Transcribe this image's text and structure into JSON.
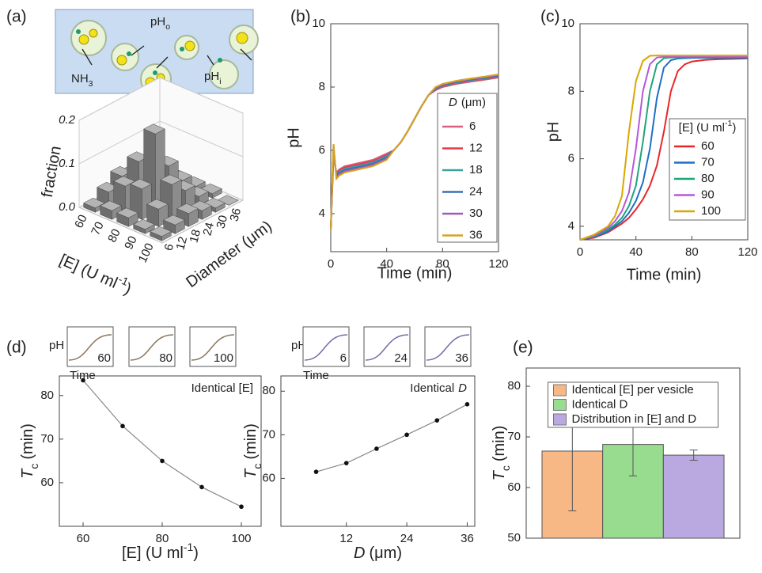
{
  "schematic": {
    "outside": {
      "text": "pH",
      "sub": "o"
    },
    "ammonia": {
      "text": "NH",
      "sub": "3"
    },
    "inside": {
      "text": "pH",
      "sub": "i"
    }
  },
  "chart_data": [
    {
      "type": "bar3d",
      "panel": "(a)",
      "y_label": "fraction",
      "categories": [
        "6",
        "12",
        "18",
        "24",
        "30",
        "36"
      ],
      "x_label": "Diameter (μm)",
      "z_categories": [
        60,
        70,
        80,
        90,
        100
      ],
      "z_label": {
        "text": "[E] (U ml",
        "sup": "-1",
        "end": ")"
      },
      "values": [
        [
          0.01,
          0.03,
          0.05,
          0.04,
          0.02,
          0.01
        ],
        [
          0.02,
          0.06,
          0.1,
          0.07,
          0.03,
          0.01
        ],
        [
          0.02,
          0.07,
          0.18,
          0.09,
          0.04,
          0.01
        ],
        [
          0.01,
          0.04,
          0.08,
          0.05,
          0.02,
          0.01
        ],
        [
          0.01,
          0.02,
          0.03,
          0.02,
          0.01,
          0.0
        ]
      ],
      "ylim": [
        0,
        0.2
      ],
      "yticks": [
        {
          "value": 0,
          "label": "0.0"
        },
        0.1,
        0.2
      ],
      "color": "#8c8c8c"
    },
    {
      "type": "line",
      "panel": "(b)",
      "x_label": "Time (min)",
      "y_label": "pH",
      "x": [
        0,
        2,
        4,
        6,
        10,
        15,
        20,
        25,
        30,
        35,
        40,
        45,
        50,
        55,
        60,
        65,
        70,
        75,
        80,
        90,
        100,
        110,
        120
      ],
      "series": [
        {
          "name": "6",
          "color": "#d9607a",
          "values": [
            3.5,
            5.8,
            5.3,
            5.4,
            5.5,
            5.55,
            5.6,
            5.65,
            5.7,
            5.8,
            5.9,
            6.0,
            6.25,
            6.6,
            7.0,
            7.4,
            7.75,
            7.9,
            8.0,
            8.1,
            8.17,
            8.23,
            8.3
          ]
        },
        {
          "name": "12",
          "color": "#e8394a",
          "values": [
            3.5,
            5.9,
            5.26,
            5.36,
            5.46,
            5.51,
            5.56,
            5.61,
            5.66,
            5.76,
            5.86,
            6.0,
            6.25,
            6.6,
            7.0,
            7.4,
            7.75,
            7.92,
            8.02,
            8.12,
            8.19,
            8.25,
            8.32
          ]
        },
        {
          "name": "18",
          "color": "#3aa0a0",
          "values": [
            3.5,
            6.0,
            5.22,
            5.32,
            5.42,
            5.47,
            5.52,
            5.57,
            5.62,
            5.72,
            5.82,
            6.0,
            6.25,
            6.6,
            7.0,
            7.4,
            7.75,
            7.94,
            8.04,
            8.14,
            8.21,
            8.27,
            8.34
          ]
        },
        {
          "name": "24",
          "color": "#3c6fb8",
          "values": [
            3.5,
            6.1,
            5.18,
            5.28,
            5.38,
            5.43,
            5.48,
            5.53,
            5.58,
            5.68,
            5.78,
            6.0,
            6.25,
            6.6,
            7.0,
            7.4,
            7.75,
            7.96,
            8.06,
            8.16,
            8.23,
            8.29,
            8.36
          ]
        },
        {
          "name": "30",
          "color": "#a05ab8",
          "values": [
            3.5,
            6.15,
            5.14,
            5.24,
            5.34,
            5.39,
            5.44,
            5.49,
            5.54,
            5.64,
            5.74,
            6.0,
            6.25,
            6.6,
            7.0,
            7.4,
            7.75,
            7.98,
            8.08,
            8.18,
            8.25,
            8.31,
            8.38
          ]
        },
        {
          "name": "36",
          "color": "#d6a41e",
          "values": [
            3.5,
            6.2,
            5.1,
            5.2,
            5.3,
            5.35,
            5.4,
            5.45,
            5.5,
            5.6,
            5.7,
            6.0,
            6.25,
            6.6,
            7.0,
            7.4,
            7.75,
            8.0,
            8.1,
            8.2,
            8.27,
            8.33,
            8.4
          ]
        }
      ],
      "xlim": [
        0,
        120
      ],
      "xticks": [
        0,
        40,
        80,
        120
      ],
      "ylim": [
        2.8,
        10
      ],
      "yticks": [
        4,
        6,
        8,
        10
      ],
      "legend": "lower right",
      "legend_title": {
        "symbol": "D",
        "unit": "(μm)"
      }
    },
    {
      "type": "line",
      "panel": "(c)",
      "x_label": "Time (min)",
      "y_label": "pH",
      "x": [
        0,
        10,
        20,
        25,
        30,
        35,
        40,
        45,
        50,
        55,
        60,
        65,
        70,
        75,
        80,
        90,
        100,
        110,
        120
      ],
      "series": [
        {
          "name": "60",
          "color": "#e8262a",
          "values": [
            3.6,
            3.66,
            3.82,
            3.95,
            4.08,
            4.25,
            4.5,
            4.8,
            5.2,
            5.8,
            6.8,
            8.0,
            8.6,
            8.8,
            8.88,
            8.93,
            8.95,
            8.96,
            8.97
          ]
        },
        {
          "name": "70",
          "color": "#1f6fc8",
          "values": [
            3.6,
            3.68,
            3.85,
            4.0,
            4.15,
            4.4,
            4.75,
            5.3,
            6.3,
            7.8,
            8.7,
            8.92,
            8.97,
            8.98,
            8.99,
            8.99,
            8.99,
            8.99,
            8.99
          ]
        },
        {
          "name": "80",
          "color": "#1fa57a",
          "values": [
            3.6,
            3.7,
            3.9,
            4.05,
            4.25,
            4.6,
            5.2,
            6.5,
            8.0,
            8.8,
            8.98,
            9.0,
            9.01,
            9.01,
            9.01,
            9.01,
            9.01,
            9.01,
            9.01
          ]
        },
        {
          "name": "90",
          "color": "#b45ad8",
          "values": [
            3.6,
            3.72,
            3.95,
            4.15,
            4.45,
            5.0,
            6.3,
            8.0,
            8.8,
            9.0,
            9.02,
            9.03,
            9.03,
            9.03,
            9.03,
            9.03,
            9.03,
            9.03,
            9.03
          ]
        },
        {
          "name": "100",
          "color": "#d8a800",
          "values": [
            3.6,
            3.75,
            4.0,
            4.3,
            4.9,
            6.8,
            8.3,
            8.9,
            9.05,
            9.06,
            9.06,
            9.06,
            9.06,
            9.06,
            9.06,
            9.06,
            9.06,
            9.06,
            9.06
          ]
        }
      ],
      "xlim": [
        0,
        120
      ],
      "xticks": [
        0,
        40,
        80,
        120
      ],
      "ylim": [
        3.6,
        10
      ],
      "yticks": [
        4,
        6,
        8,
        10
      ],
      "legend": "lower right",
      "legend_title": {
        "text": "[E] (U ml",
        "sup": "-1",
        "end": ")"
      }
    },
    {
      "type": "line-marker",
      "panel": "(d)",
      "annotation": {
        "text": "Identical [E]"
      },
      "x": [
        60,
        70,
        80,
        90,
        100
      ],
      "values": [
        83.5,
        73,
        65,
        59,
        54.5
      ],
      "xlim": [
        54,
        105
      ],
      "xticks": [
        60,
        80,
        100
      ],
      "ylim": [
        50,
        84.5
      ],
      "yticks": [
        60,
        70,
        80
      ],
      "x_label": {
        "text": "[E] (U ml",
        "sup": "-1",
        "end": ")"
      },
      "y_label": {
        "symbol": "T",
        "sub": "c",
        "unit": "(min)"
      },
      "insets": {
        "y_label": "pH",
        "x_label": "Time",
        "labels": [
          60,
          80,
          100
        ],
        "color": "#8a7660"
      }
    },
    {
      "type": "line-marker",
      "annotation": {
        "text": "Identical",
        "symbol": "D"
      },
      "x": [
        6,
        12,
        18,
        24,
        30,
        36
      ],
      "values": [
        61.5,
        63.5,
        66.8,
        70,
        73.3,
        77
      ],
      "xlim": [
        -1,
        37.5
      ],
      "xticks": [
        12,
        24,
        36
      ],
      "ylim": [
        49,
        83.5
      ],
      "yticks": [
        60,
        70,
        80
      ],
      "x_label": {
        "symbol": "D",
        "unit": "(μm)"
      },
      "y_label": {
        "symbol": "T",
        "sub": "c",
        "unit": "(min)"
      },
      "insets": {
        "y_label": "pH",
        "x_label": "Time",
        "labels": [
          6,
          24,
          36
        ],
        "color": "#7a6aa8"
      }
    },
    {
      "type": "bar",
      "panel": "(e)",
      "y_label": {
        "symbol": "T",
        "sub": "c",
        "unit": "(min)"
      },
      "series": [
        {
          "name": "Identical [E] per vesicle",
          "color": "#f8b886",
          "values": [
            67.2
          ],
          "errors": [
            11.8
          ]
        },
        {
          "name": "Identical D",
          "color": "#98dc90",
          "values": [
            68.5
          ],
          "errors": [
            6.2
          ]
        },
        {
          "name": "Distribution in [E] and D",
          "color": "#baa9e0",
          "values": [
            66.4
          ],
          "errors": [
            1.0
          ]
        }
      ],
      "ylim": [
        50,
        83.6
      ],
      "yticks": [
        50,
        60,
        70,
        80
      ],
      "legend": "upper center"
    }
  ]
}
